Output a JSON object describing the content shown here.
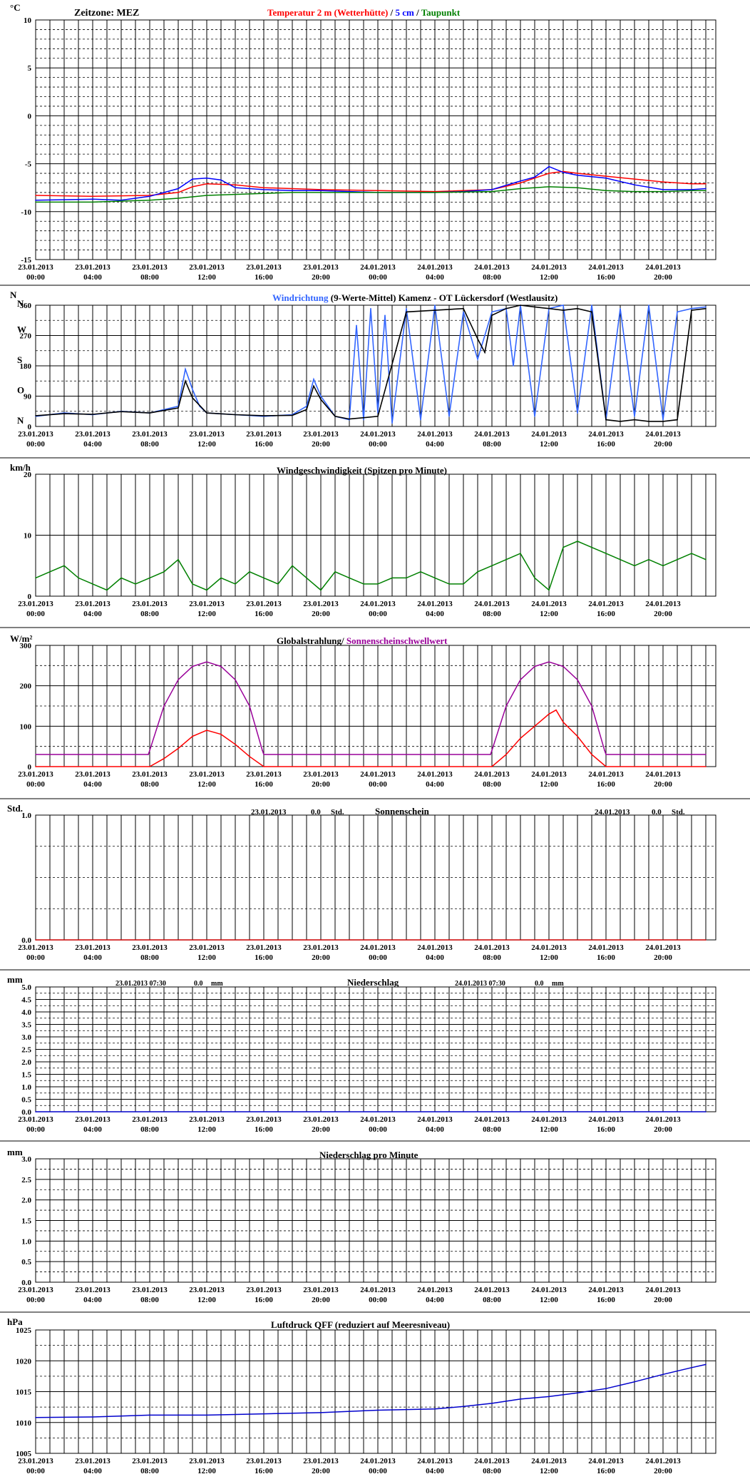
{
  "page": {
    "timezone_label": "Zeitzone: MEZ"
  },
  "colors": {
    "temp2m": "#ff0000",
    "temp5cm": "#0000ff",
    "dew": "#008000",
    "wind_dir": "#3366ff",
    "wind_dir_avg": "#000000",
    "wind_speed": "#008000",
    "radiation": "#ff0000",
    "threshold": "#990099",
    "sunshine": "#cc0000",
    "rain": "#0000cc",
    "pressure": "#0000cc"
  },
  "time_ticks": [
    {
      "date": "23.01.2013",
      "time": "00:00"
    },
    {
      "date": "23.01.2013",
      "time": "04:00"
    },
    {
      "date": "23.01.2013",
      "time": "08:00"
    },
    {
      "date": "23.01.2013",
      "time": "12:00"
    },
    {
      "date": "23.01.2013",
      "time": "16:00"
    },
    {
      "date": "23.01.2013",
      "time": "20:00"
    },
    {
      "date": "24.01.2013",
      "time": "00:00"
    },
    {
      "date": "24.01.2013",
      "time": "04:00"
    },
    {
      "date": "24.01.2013",
      "time": "08:00"
    },
    {
      "date": "24.01.2013",
      "time": "12:00"
    },
    {
      "date": "24.01.2013",
      "time": "16:00"
    },
    {
      "date": "24.01.2013",
      "time": "20:00"
    }
  ],
  "chart_data": [
    {
      "type": "line",
      "unit": "°C",
      "title_parts": [
        {
          "text": "Temperatur 2 m (Wetterhütte)",
          "color": "#ff0000"
        },
        {
          "text": "  /  ",
          "color": "#000000"
        },
        {
          "text": "5 cm",
          "color": "#0000ff"
        },
        {
          "text": " / ",
          "color": "#000000"
        },
        {
          "text": "Taupunkt",
          "color": "#008000"
        }
      ],
      "ylim": [
        -15,
        10
      ],
      "yticks": [
        "10",
        "5",
        "0",
        "-5",
        "-10",
        "-15"
      ],
      "x_hours": [
        0,
        47
      ],
      "series": [
        {
          "name": "Temperatur 2 m (Wetterhütte)",
          "color": "#ff0000",
          "x": [
            0,
            4,
            8,
            10,
            11,
            12,
            14,
            16,
            18,
            20,
            24,
            28,
            32,
            34,
            36,
            37,
            38,
            40,
            42,
            44,
            46,
            47
          ],
          "y": [
            -8.3,
            -8.4,
            -8.3,
            -8.0,
            -7.4,
            -7.1,
            -7.2,
            -7.5,
            -7.6,
            -7.7,
            -7.8,
            -7.9,
            -7.7,
            -7.0,
            -6.0,
            -5.8,
            -6.0,
            -6.3,
            -6.6,
            -6.9,
            -7.1,
            -7.1
          ]
        },
        {
          "name": "5 cm",
          "color": "#0000ff",
          "x": [
            0,
            4,
            6,
            8,
            10,
            11,
            12,
            13,
            14,
            16,
            18,
            20,
            24,
            28,
            30,
            32,
            34,
            35,
            36,
            37,
            38,
            40,
            42,
            44,
            46,
            47
          ],
          "y": [
            -8.8,
            -8.7,
            -8.8,
            -8.4,
            -7.6,
            -6.6,
            -6.5,
            -6.7,
            -7.5,
            -7.7,
            -7.8,
            -7.8,
            -8.0,
            -8.0,
            -7.9,
            -7.7,
            -6.8,
            -6.4,
            -5.3,
            -5.9,
            -6.2,
            -6.5,
            -7.2,
            -7.7,
            -7.7,
            -7.6
          ]
        },
        {
          "name": "Taupunkt",
          "color": "#008000",
          "x": [
            0,
            4,
            8,
            10,
            12,
            14,
            16,
            18,
            20,
            24,
            28,
            32,
            34,
            36,
            38,
            40,
            42,
            44,
            46,
            47
          ],
          "y": [
            -9.0,
            -9.0,
            -8.8,
            -8.6,
            -8.3,
            -8.2,
            -8.1,
            -8.0,
            -8.0,
            -8.0,
            -8.0,
            -7.9,
            -7.6,
            -7.4,
            -7.5,
            -7.8,
            -7.9,
            -7.9,
            -7.8,
            -7.8
          ]
        }
      ]
    },
    {
      "type": "line",
      "unit": "N",
      "title_parts": [
        {
          "text": "Windrichtung",
          "color": "#3366ff"
        },
        {
          "text": " (9-Werte-Mittel)",
          "color": "#000000"
        },
        {
          "text": "       Kamenz - OT Lückersdorf (Westlausitz)",
          "color": "#000000"
        }
      ],
      "ylim": [
        0,
        360
      ],
      "yticks": [
        "360",
        "270",
        "180",
        "90",
        "0"
      ],
      "direction_labels": [
        "N",
        "W",
        "S",
        "O",
        "N"
      ],
      "x_hours": [
        0,
        47
      ],
      "series": [
        {
          "name": "Windrichtung",
          "color": "#3366ff",
          "x": [
            0,
            2,
            4,
            6,
            8,
            10,
            10.5,
            11,
            11.5,
            12,
            14,
            16,
            18,
            19,
            19.5,
            20,
            21,
            22,
            22.5,
            23,
            23.5,
            24,
            24.5,
            25,
            26,
            27,
            28,
            29,
            30,
            31,
            32,
            33,
            33.5,
            34,
            35,
            36,
            37,
            38,
            39,
            40,
            41,
            42,
            43,
            44,
            45,
            46,
            47
          ],
          "y": [
            30,
            40,
            35,
            45,
            40,
            60,
            170,
            110,
            60,
            40,
            35,
            30,
            35,
            60,
            140,
            90,
            30,
            20,
            300,
            20,
            350,
            40,
            330,
            10,
            350,
            20,
            360,
            30,
            340,
            200,
            340,
            350,
            180,
            360,
            30,
            350,
            360,
            40,
            360,
            20,
            350,
            30,
            360,
            20,
            340,
            350,
            355
          ]
        },
        {
          "name": "9-Werte-Mittel",
          "color": "#000000",
          "x": [
            0,
            2,
            4,
            6,
            8,
            10,
            10.5,
            11,
            12,
            14,
            16,
            18,
            19,
            19.5,
            20,
            21,
            22,
            24,
            26,
            28,
            30,
            31,
            31.5,
            32,
            33,
            34,
            35,
            36,
            37,
            38,
            39,
            40,
            41,
            42,
            43,
            44,
            45,
            46,
            47
          ],
          "y": [
            32,
            38,
            36,
            44,
            40,
            55,
            135,
            85,
            40,
            35,
            32,
            33,
            50,
            120,
            80,
            30,
            22,
            30,
            340,
            345,
            350,
            260,
            220,
            330,
            350,
            360,
            355,
            350,
            345,
            350,
            340,
            20,
            15,
            20,
            15,
            15,
            20,
            345,
            350
          ]
        }
      ]
    },
    {
      "type": "line",
      "unit": "km/h",
      "title_parts": [
        {
          "text": "Windgeschwindigkeit (Spitzen pro Minute)",
          "color": "#000000"
        }
      ],
      "ylim": [
        0,
        20
      ],
      "yticks": [
        "20",
        "10",
        "0"
      ],
      "x_hours": [
        0,
        47
      ],
      "series": [
        {
          "name": "Windgeschwindigkeit (Spitzen pro Minute)",
          "color": "#008000",
          "x": [
            0,
            1,
            2,
            3,
            4,
            5,
            6,
            7,
            8,
            9,
            10,
            11,
            12,
            13,
            14,
            15,
            16,
            17,
            18,
            19,
            20,
            21,
            22,
            23,
            24,
            25,
            26,
            27,
            28,
            29,
            30,
            31,
            32,
            33,
            34,
            35,
            36,
            37,
            38,
            39,
            40,
            41,
            42,
            43,
            44,
            45,
            46,
            47
          ],
          "y": [
            3,
            4,
            5,
            3,
            2,
            1,
            3,
            2,
            3,
            4,
            6,
            2,
            1,
            3,
            2,
            4,
            3,
            2,
            5,
            3,
            1,
            4,
            3,
            2,
            2,
            3,
            3,
            4,
            3,
            2,
            2,
            4,
            5,
            6,
            7,
            3,
            1,
            8,
            9,
            8,
            7,
            6,
            5,
            6,
            5,
            6,
            7,
            6
          ]
        }
      ]
    },
    {
      "type": "line",
      "unit": "W/m²",
      "title_parts": [
        {
          "text": "Globalstrahlung/ ",
          "color": "#000000"
        },
        {
          "text": "Sonnenscheinschwellwert",
          "color": "#990099"
        }
      ],
      "ylim": [
        0,
        300
      ],
      "yticks": [
        "300",
        "200",
        "100",
        "0"
      ],
      "x_hours": [
        0,
        47
      ],
      "series": [
        {
          "name": "Sonnenscheinschwellwert",
          "color": "#990099",
          "x": [
            0,
            7.9,
            8,
            9,
            10,
            11,
            12,
            13,
            14,
            15,
            15.9,
            16,
            24,
            31.9,
            32,
            33,
            34,
            35,
            36,
            37,
            38,
            39,
            39.9,
            40,
            47
          ],
          "y": [
            30,
            30,
            40,
            150,
            215,
            248,
            259,
            248,
            215,
            150,
            40,
            30,
            30,
            30,
            40,
            150,
            215,
            248,
            259,
            248,
            215,
            150,
            40,
            30,
            30
          ]
        },
        {
          "name": "Globalstrahlung",
          "color": "#ff0000",
          "x": [
            0,
            8,
            9,
            10,
            11,
            12,
            13,
            14,
            15,
            16,
            24,
            32,
            33,
            34,
            35,
            36,
            36.5,
            37,
            38,
            39,
            40,
            47
          ],
          "y": [
            0,
            0,
            20,
            45,
            75,
            90,
            80,
            55,
            25,
            0,
            0,
            0,
            30,
            70,
            100,
            130,
            140,
            110,
            75,
            30,
            0,
            0
          ]
        }
      ]
    },
    {
      "type": "line",
      "unit": "Std.",
      "title_parts": [
        {
          "text": "Sonnenschein",
          "color": "#000000"
        }
      ],
      "summaries": [
        {
          "date": "23.01.2013",
          "value": "0.0",
          "unit": "Std."
        },
        {
          "date": "24.01.2013",
          "value": "0.0",
          "unit": "Std."
        }
      ],
      "ylim": [
        0,
        1
      ],
      "yticks": [
        "1.0",
        "0.0"
      ],
      "x_hours": [
        0,
        47
      ],
      "series": [
        {
          "name": "Sonnenschein",
          "color": "#cc0000",
          "x": [
            0,
            47
          ],
          "y": [
            0,
            0
          ]
        }
      ]
    },
    {
      "type": "line",
      "unit": "mm",
      "title_parts": [
        {
          "text": "Niederschlag",
          "color": "#000000"
        }
      ],
      "summaries": [
        {
          "date": "23.01.2013 07:30",
          "value": "0.0",
          "unit": "mm"
        },
        {
          "date": "24.01.2013 07:30",
          "value": "0.0",
          "unit": "mm"
        }
      ],
      "ylim": [
        0,
        5
      ],
      "yticks": [
        "5.0",
        "4.5",
        "4.0",
        "3.5",
        "3.0",
        "2.5",
        "2.0",
        "1.5",
        "1.0",
        "0.5",
        "0.0"
      ],
      "x_hours": [
        0,
        47
      ],
      "series": [
        {
          "name": "Niederschlag",
          "color": "#0000cc",
          "x": [
            0,
            47
          ],
          "y": [
            0,
            0
          ]
        }
      ]
    },
    {
      "type": "line",
      "unit": "mm",
      "title_parts": [
        {
          "text": "Niederschlag pro Minute",
          "color": "#000000"
        }
      ],
      "ylim": [
        0,
        3
      ],
      "yticks": [
        "3.0",
        "2.5",
        "2.0",
        "1.5",
        "1.0",
        "0.5",
        "0.0"
      ],
      "x_hours": [
        0,
        47
      ],
      "series": []
    },
    {
      "type": "line",
      "unit": "hPa",
      "title_parts": [
        {
          "text": "Luftdruck QFF (reduziert auf Meeresniveau)",
          "color": "#000000"
        }
      ],
      "ylim": [
        1005,
        1025
      ],
      "yticks": [
        "1025",
        "1020",
        "1015",
        "1010",
        "1005"
      ],
      "x_hours": [
        0,
        47
      ],
      "series": [
        {
          "name": "Luftdruck QFF",
          "color": "#0000cc",
          "x": [
            0,
            4,
            8,
            12,
            16,
            20,
            24,
            28,
            30,
            32,
            34,
            36,
            38,
            40,
            42,
            44,
            46,
            47
          ],
          "y": [
            1010.8,
            1010.9,
            1011.2,
            1011.2,
            1011.4,
            1011.6,
            1012.0,
            1012.2,
            1012.6,
            1013.1,
            1013.8,
            1014.2,
            1014.8,
            1015.5,
            1016.6,
            1017.8,
            1018.9,
            1019.4
          ]
        }
      ]
    }
  ]
}
